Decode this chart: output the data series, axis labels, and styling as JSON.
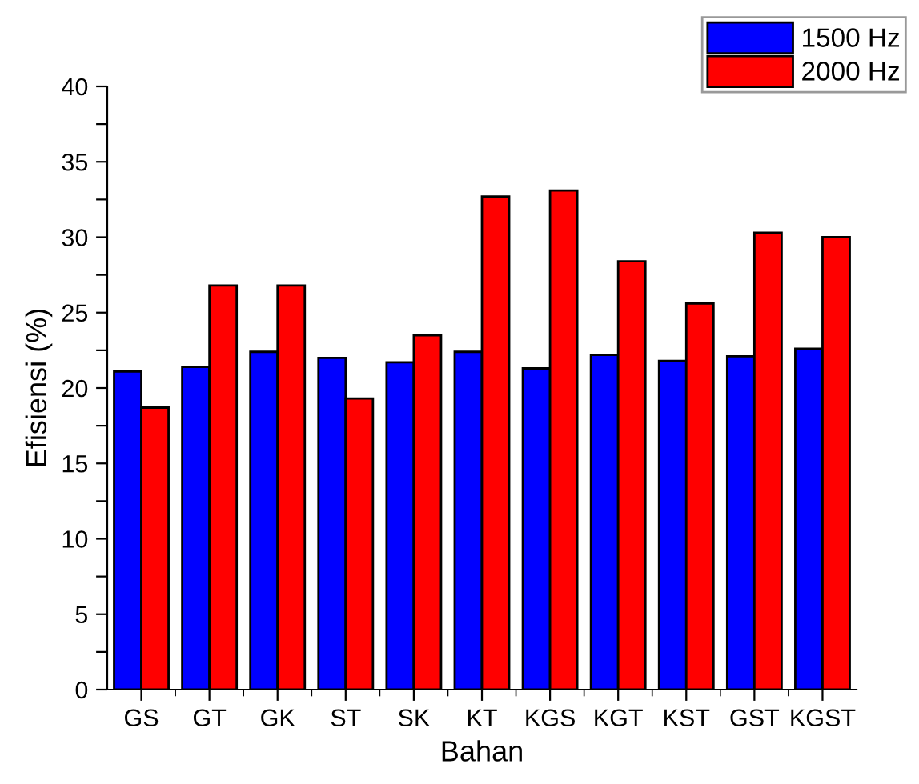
{
  "chart_data": {
    "type": "bar",
    "xlabel": "Bahan",
    "ylabel": "Efisiensi (%)",
    "categories": [
      "GS",
      "GT",
      "GK",
      "ST",
      "SK",
      "KT",
      "KGS",
      "KGT",
      "KST",
      "GST",
      "KGST"
    ],
    "series": [
      {
        "name": "1500 Hz",
        "color": "#0000ff",
        "values": [
          21.1,
          21.4,
          22.4,
          22.0,
          21.7,
          22.4,
          21.3,
          22.2,
          21.8,
          22.1,
          22.6
        ]
      },
      {
        "name": "2000 Hz",
        "color": "#ff0000",
        "values": [
          18.7,
          26.8,
          26.8,
          19.3,
          23.5,
          32.7,
          33.1,
          28.4,
          25.6,
          30.3,
          30.0
        ]
      }
    ],
    "ylim": [
      0,
      40
    ],
    "yticks": [
      0,
      {
        "value": 2.5,
        "label": null
      },
      5,
      {
        "value": 7.5,
        "label": null
      },
      10,
      {
        "value": 12.5,
        "label": null
      },
      15,
      {
        "value": 17.5,
        "label": null
      },
      20,
      {
        "value": 22.5,
        "label": null
      },
      25,
      {
        "value": 27.5,
        "label": null
      },
      30,
      {
        "value": 32.5,
        "label": null
      },
      35,
      {
        "value": 37.5,
        "label": null
      },
      40
    ],
    "grid": false,
    "legend": "top right"
  }
}
